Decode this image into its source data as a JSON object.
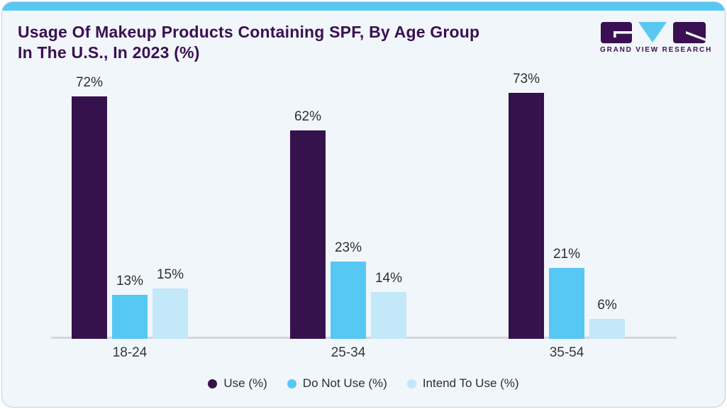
{
  "header": {
    "title_line1": "Usage Of Makeup Products Containing SPF, By Age Group",
    "title_line2": "In The U.S., In 2023 (%)",
    "logo_text": "GRAND VIEW RESEARCH"
  },
  "chart_data": {
    "type": "bar",
    "title": "Usage Of Makeup Products Containing SPF, By Age Group In The U.S., In 2023 (%)",
    "categories": [
      "18-24",
      "25-34",
      "35-54"
    ],
    "series": [
      {
        "name": "Use (%)",
        "color": "#36124d",
        "values": [
          72,
          62,
          73
        ]
      },
      {
        "name": "Do Not Use (%)",
        "color": "#57c7f3",
        "values": [
          13,
          23,
          21
        ]
      },
      {
        "name": "Intend To Use (%)",
        "color": "#c2e8f9",
        "values": [
          15,
          14,
          6
        ]
      }
    ],
    "value_suffix": "%",
    "xlabel": "",
    "ylabel": "",
    "grid": false,
    "legend_position": "bottom"
  },
  "colors": {
    "accent_top_bar": "#58c8f2",
    "title_text": "#3a1053",
    "card_background": "#f1f6fa",
    "card_border": "#c9cdd9",
    "axis_line": "#d5d6da",
    "label_text": "#2e2e2e"
  }
}
